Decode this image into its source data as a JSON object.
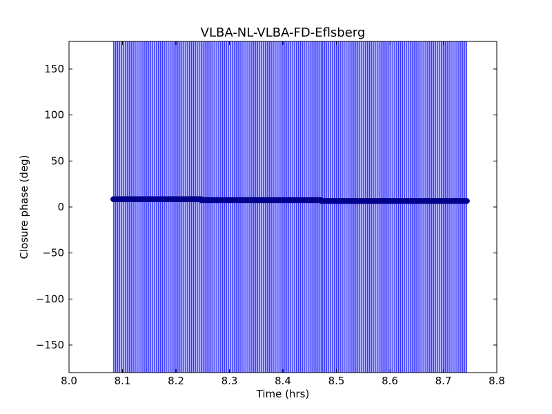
{
  "chart_data": {
    "type": "scatter",
    "title": "VLBA-NL-VLBA-FD-Eflsberg",
    "xlabel": "Time (hrs)",
    "ylabel": "Closure phase (deg)",
    "xlim": [
      8.0,
      8.8
    ],
    "ylim": [
      -180,
      180
    ],
    "xticks": [
      8.0,
      8.1,
      8.2,
      8.3,
      8.4,
      8.5,
      8.6,
      8.7,
      8.8
    ],
    "xtick_labels": [
      "8.0",
      "8.1",
      "8.2",
      "8.3",
      "8.4",
      "8.5",
      "8.6",
      "8.7",
      "8.8"
    ],
    "yticks": [
      150,
      100,
      50,
      0,
      -50,
      -100,
      -150
    ],
    "ytick_labels": [
      "150",
      "100",
      "50",
      "0",
      "−50",
      "−100",
      "−150"
    ],
    "grid": false,
    "color": "#0000ff",
    "marker_color": "#00008b",
    "error_bars": "full range (−180 to 180) at every point",
    "series": [
      {
        "segments": [
          {
            "x_start": 8.083,
            "x_end": 8.247,
            "y": 8.5
          },
          {
            "x_start": 8.247,
            "x_end": 8.472,
            "y": 7.5
          },
          {
            "x_start": 8.472,
            "x_end": 8.745,
            "y": 6.5
          }
        ],
        "x_step": 0.002
      }
    ]
  }
}
